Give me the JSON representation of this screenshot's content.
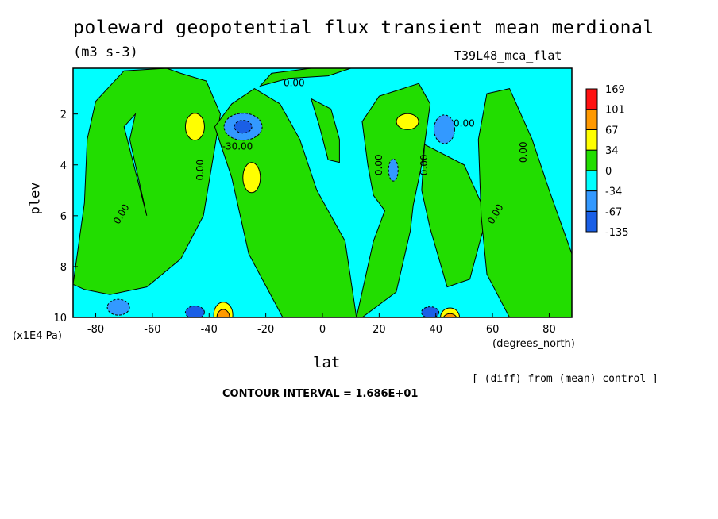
{
  "title": "poleward geopotential flux transient mean merdional",
  "units": "(m3 s-3)",
  "run_name": "T39L48_mca_flat",
  "footer": {
    "diff_note": "[ (diff) from (mean) control ]",
    "contour_interval": "CONTOUR INTERVAL = 1.686E+01"
  },
  "chart_data": {
    "type": "heatmap",
    "subtype": "filled-contour",
    "xlabel": "lat",
    "x_units": "(degrees_north)",
    "ylabel": "plev",
    "y_units": "(x1E4 Pa)",
    "xlim": [
      -88,
      88
    ],
    "ylim": [
      10,
      0.2
    ],
    "x_ticks": [
      -80,
      -60,
      -40,
      -20,
      0,
      20,
      40,
      60,
      80
    ],
    "y_ticks": [
      2,
      4,
      6,
      8,
      10
    ],
    "colorbar": {
      "levels": [
        -135,
        -67,
        -34,
        0,
        34,
        67,
        101,
        169
      ],
      "colors": [
        "#1a5fe6",
        "#3399ff",
        "#00ffff",
        "#22dd00",
        "#ffff00",
        "#ff9900",
        "#ff1111"
      ],
      "placement": "right"
    },
    "contour_labels": [
      "0.00",
      "0.00",
      "0.00",
      "0.00",
      "0.00",
      "0.00",
      "0.00",
      "0.00",
      "-30.00"
    ],
    "features": [
      {
        "kind": "positive",
        "lat": -45,
        "plev": 2.5,
        "level": 34
      },
      {
        "kind": "negative",
        "lat": -28,
        "plev": 2.5,
        "level": -34
      },
      {
        "kind": "positive",
        "lat": -25,
        "plev": 4.5,
        "level": 34
      },
      {
        "kind": "positive",
        "lat": 30,
        "plev": 2.3,
        "level": 34
      },
      {
        "kind": "negative",
        "lat": 43,
        "plev": 2.6,
        "level": -34
      },
      {
        "kind": "negative",
        "lat": 25,
        "plev": 4.2,
        "level": -34
      },
      {
        "kind": "positive",
        "lat": -35,
        "plev": 9.7,
        "level": 101
      },
      {
        "kind": "positive",
        "lat": 45,
        "plev": 9.8,
        "level": 101
      },
      {
        "kind": "negative",
        "lat": -72,
        "plev": 9.6,
        "level": -34
      },
      {
        "kind": "negative",
        "lat": -45,
        "plev": 9.8,
        "level": -34
      },
      {
        "kind": "negative",
        "lat": 38,
        "plev": 9.8,
        "level": -34
      }
    ]
  }
}
